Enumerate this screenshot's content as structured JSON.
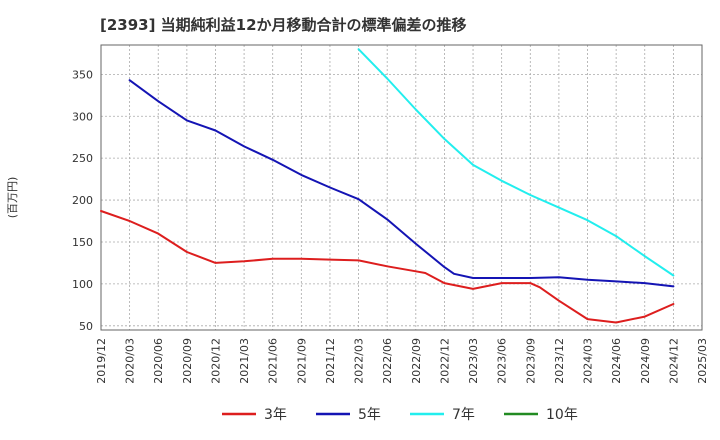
{
  "chart_data": {
    "type": "line",
    "title": "[2393]  当期純利益12か月移動合計の標準偏差の推移",
    "ylabel": "(百万円)",
    "xlabel": "",
    "x_tick_labels": [
      "2019/12",
      "2020/03",
      "2020/06",
      "2020/09",
      "2020/12",
      "2021/03",
      "2021/06",
      "2021/09",
      "2021/12",
      "2022/03",
      "2022/06",
      "2022/09",
      "2022/12",
      "2023/03",
      "2023/06",
      "2023/09",
      "2023/12",
      "2024/03",
      "2024/06",
      "2024/09",
      "2024/12",
      "2025/03"
    ],
    "y_ticks": [
      50,
      100,
      150,
      200,
      250,
      300,
      350
    ],
    "ylim": [
      45,
      385
    ],
    "xlim": [
      "2019/12",
      "2025/03"
    ],
    "grid": true,
    "legend_position": "bottom",
    "series": [
      {
        "name": "3年",
        "color": "#dd1e1e",
        "x": [
          "2019/12",
          "2020/03",
          "2020/06",
          "2020/09",
          "2020/12",
          "2021/03",
          "2021/06",
          "2021/09",
          "2021/12",
          "2022/03",
          "2022/06",
          "2022/09",
          "2022/10",
          "2022/12",
          "2023/03",
          "2023/06",
          "2023/09",
          "2023/10",
          "2023/12",
          "2024/03",
          "2024/06",
          "2024/09",
          "2024/12"
        ],
        "values": [
          187,
          175,
          160,
          138,
          125,
          127,
          130,
          130,
          129,
          128,
          121,
          115,
          113,
          101,
          94,
          101,
          101,
          96,
          80,
          58,
          54,
          61,
          76
        ]
      },
      {
        "name": "5年",
        "color": "#1414b4",
        "x": [
          "2020/03",
          "2020/06",
          "2020/09",
          "2020/12",
          "2021/03",
          "2021/06",
          "2021/09",
          "2021/12",
          "2022/03",
          "2022/06",
          "2022/09",
          "2022/12",
          "2023/01",
          "2023/03",
          "2023/06",
          "2023/09",
          "2023/12",
          "2024/03",
          "2024/06",
          "2024/09",
          "2024/12"
        ],
        "values": [
          343,
          318,
          295,
          283,
          264,
          248,
          230,
          215,
          201,
          177,
          148,
          120,
          112,
          107,
          107,
          107,
          108,
          105,
          103,
          101,
          97
        ]
      },
      {
        "name": "7年",
        "color": "#22eeee",
        "x": [
          "2022/03",
          "2022/06",
          "2022/09",
          "2022/12",
          "2023/03",
          "2023/06",
          "2023/09",
          "2023/12",
          "2024/03",
          "2024/06",
          "2024/09",
          "2024/12"
        ],
        "values": [
          380,
          345,
          308,
          273,
          242,
          223,
          206,
          191,
          176,
          157,
          133,
          110
        ]
      },
      {
        "name": "10年",
        "color": "#228b22",
        "x": [],
        "values": []
      }
    ]
  }
}
